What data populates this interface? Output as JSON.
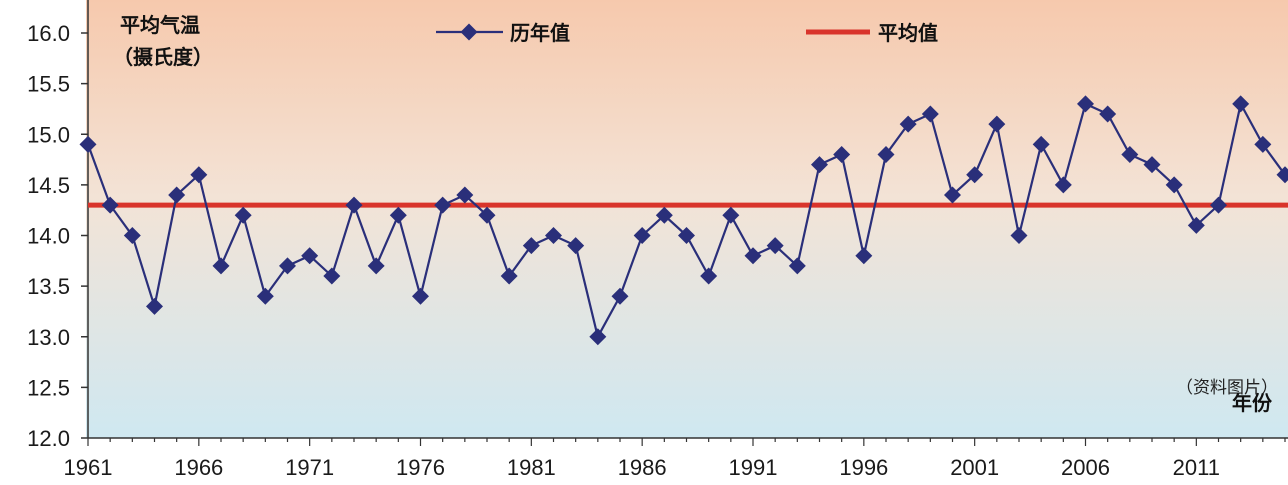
{
  "chart_data": {
    "type": "line",
    "ylabel_line1": "平均气温",
    "ylabel_line2": "（摄氏度）",
    "xlabel": "年份",
    "source_note": "（资料图片）",
    "ylim": [
      12.0,
      16.0
    ],
    "yticks": [
      "12.0",
      "12.5",
      "13.0",
      "13.5",
      "14.0",
      "14.5",
      "15.0",
      "15.5",
      "16.0"
    ],
    "xlim": [
      1961,
      2015
    ],
    "xticks": [
      "1961",
      "1966",
      "1971",
      "1976",
      "1981",
      "1986",
      "1991",
      "1996",
      "2001",
      "2006",
      "2011"
    ],
    "legend": [
      {
        "name": "历年值",
        "color": "#2a2f7a"
      },
      {
        "name": "平均值",
        "color": "#d9342b"
      }
    ],
    "series": [
      {
        "name": "历年值",
        "color": "#2a2f7a",
        "x": [
          1961,
          1962,
          1963,
          1964,
          1965,
          1966,
          1967,
          1968,
          1969,
          1970,
          1971,
          1972,
          1973,
          1974,
          1975,
          1976,
          1977,
          1978,
          1979,
          1980,
          1981,
          1982,
          1983,
          1984,
          1985,
          1986,
          1987,
          1988,
          1989,
          1990,
          1991,
          1992,
          1993,
          1994,
          1995,
          1996,
          1997,
          1998,
          1999,
          2000,
          2001,
          2002,
          2003,
          2004,
          2005,
          2006,
          2007,
          2008,
          2009,
          2010,
          2011,
          2012,
          2013,
          2014,
          2015
        ],
        "values": [
          14.9,
          14.3,
          14.0,
          13.3,
          14.4,
          14.6,
          13.7,
          14.2,
          13.4,
          13.7,
          13.8,
          13.6,
          14.3,
          13.7,
          14.2,
          13.4,
          14.3,
          14.4,
          14.2,
          13.6,
          13.9,
          14.0,
          13.9,
          13.0,
          13.4,
          14.0,
          14.2,
          14.0,
          13.6,
          14.2,
          13.8,
          13.9,
          13.7,
          14.7,
          14.8,
          13.8,
          14.8,
          15.1,
          15.2,
          14.4,
          14.6,
          15.1,
          14.0,
          14.9,
          14.5,
          15.3,
          15.2,
          14.8,
          14.7,
          14.5,
          14.1,
          14.3,
          15.3,
          14.9,
          14.6
        ]
      },
      {
        "name": "平均值",
        "color": "#d9342b",
        "values": [
          14.3
        ]
      }
    ],
    "background": {
      "top": "#f6c9ad",
      "bottom": "#cfe8f1"
    }
  }
}
